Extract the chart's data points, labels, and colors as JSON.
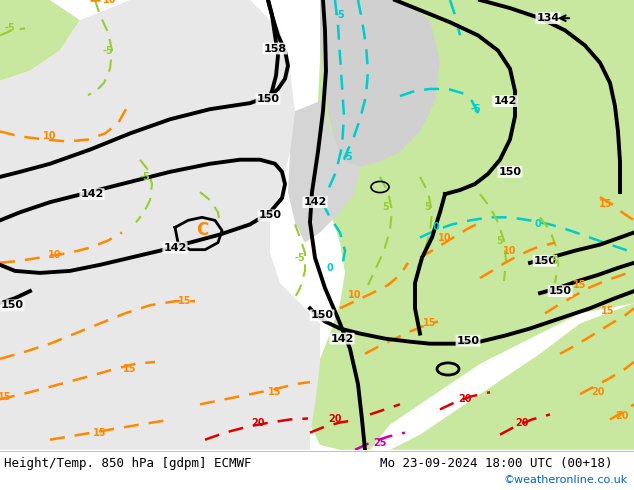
{
  "title_left": "Height/Temp. 850 hPa [gdpm] ECMWF",
  "title_right": "Mo 23-09-2024 18:00 UTC (00+18)",
  "credit": "©weatheronline.co.uk",
  "fig_width": 6.34,
  "fig_height": 4.9,
  "dpi": 100,
  "bg_color": "#e0e0e0",
  "bottom_bar_color": "#f0f0f0",
  "title_font_size": 9,
  "credit_color": "#0066cc",
  "credit_font_size": 8,
  "cyan": "#00cccc",
  "ygreen": "#99cc33",
  "orange": "#ff8800",
  "red": "#dd0000",
  "magenta": "#cc00aa",
  "black": "#000000",
  "lgreen_fill": "#c8e8a0",
  "grey_fill": "#d8d8d8",
  "light_grey": "#e8e8e8"
}
